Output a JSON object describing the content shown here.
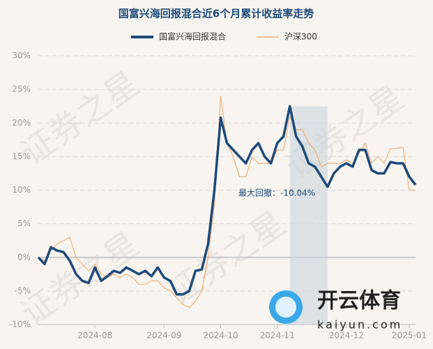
{
  "chart_data": {
    "type": "line",
    "title": "国富兴海回报混合近6个月累计收益率走势",
    "legend": "top",
    "grid": true,
    "categories": [
      null,
      null,
      null,
      null,
      null,
      null,
      null,
      null,
      null,
      "2024-08",
      null,
      null,
      null,
      null,
      null,
      null,
      null,
      null,
      null,
      null,
      "2024-09",
      null,
      null,
      null,
      null,
      null,
      null,
      null,
      null,
      "2024-10",
      null,
      null,
      null,
      null,
      null,
      null,
      null,
      null,
      "2024-11",
      null,
      null,
      null,
      null,
      null,
      null,
      null,
      null,
      null,
      null,
      "2024-12",
      null,
      null,
      null,
      null,
      null,
      null,
      null,
      null,
      null,
      "2025-01",
      null
    ],
    "series": [
      {
        "name": "国富兴海回报混合",
        "color": "#1d4a7a",
        "values": [
          0,
          -1,
          1.5,
          1,
          0.8,
          -0.5,
          -2.5,
          -3.5,
          -3.8,
          -1.5,
          -3.5,
          -2.8,
          -2,
          -2.3,
          -1.5,
          -2,
          -2.5,
          -2,
          -2.8,
          -1.5,
          -3,
          -3.5,
          -5.5,
          -5.5,
          -5,
          -2,
          -1.8,
          2,
          10,
          20.8,
          17,
          16,
          15,
          14,
          16,
          17,
          15,
          14,
          17,
          18,
          22.5,
          18,
          16.5,
          14,
          13.5,
          12,
          10.5,
          12.5,
          13.5,
          14,
          13.5,
          16,
          16,
          13,
          12.5,
          12.5,
          14.2,
          14,
          14,
          12,
          10.8
        ]
      },
      {
        "name": "沪深300",
        "color": "#eeb07a",
        "values": [
          0,
          -0.5,
          1,
          2,
          2.5,
          3,
          0,
          -1,
          -2,
          -1,
          -2.5,
          -3,
          -2.5,
          -3,
          -2.5,
          -3,
          -4,
          -4,
          -3.5,
          -3.5,
          -4.5,
          -5,
          -6,
          -7,
          -7.5,
          -6.5,
          -5,
          0,
          8,
          24,
          17,
          15,
          12,
          12,
          15,
          14,
          14,
          14,
          16,
          16,
          21,
          19,
          19,
          17,
          16,
          13.5,
          14,
          14,
          14,
          14.5,
          14,
          15.5,
          17,
          14,
          15,
          14,
          16.2,
          16.2,
          16.4,
          10,
          10
        ]
      }
    ],
    "ylim": [
      -10,
      30
    ],
    "yticks": [
      {
        "value": -10,
        "label": "-10%"
      },
      {
        "value": -5,
        "label": "-5%"
      },
      {
        "value": 0,
        "label": "0%"
      },
      {
        "value": 5,
        "label": "5%"
      },
      {
        "value": 10,
        "label": "10%"
      },
      {
        "value": 15,
        "label": "15%"
      },
      {
        "value": 20,
        "label": "20%"
      },
      {
        "value": 25,
        "label": "25%"
      },
      {
        "value": 30,
        "label": "30%"
      }
    ],
    "annotation": "最大回撤：-10.04%",
    "watermark": "证券之星",
    "logo": {
      "name": "开云体育",
      "url": "kaiyun.com"
    }
  }
}
